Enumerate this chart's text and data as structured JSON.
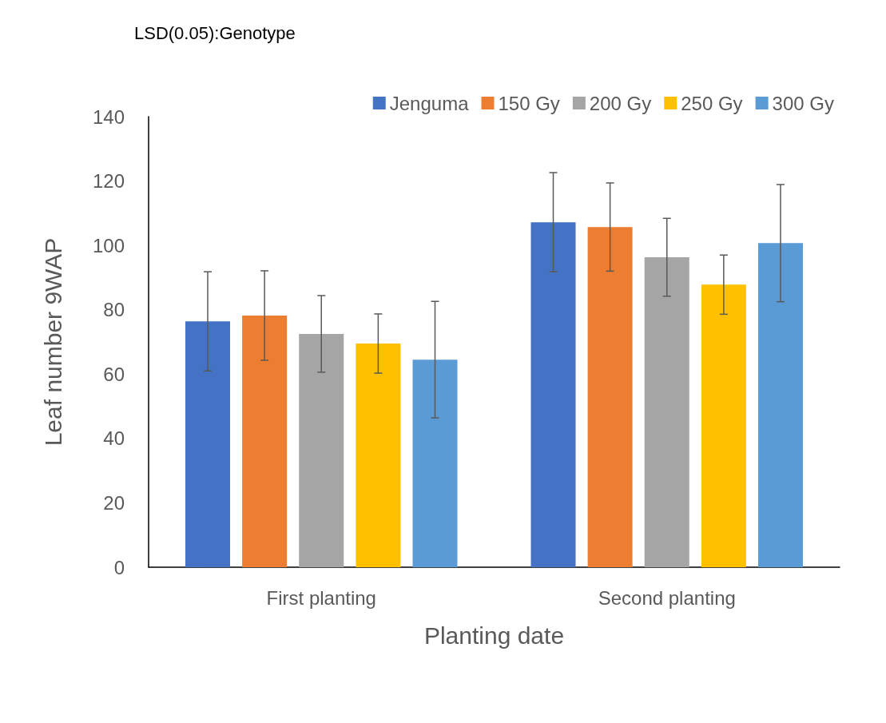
{
  "chart_data": {
    "type": "bar",
    "annotations": [
      "LSD(0.05):Genotype"
    ],
    "xlabel": "Planting date",
    "ylabel": "Leaf number 9WAP",
    "categories": [
      "First planting",
      "Second planting"
    ],
    "series": [
      {
        "name": "Jenguma",
        "color": "#4472c4",
        "values": [
          76.4,
          107.2
        ],
        "errors": [
          15.4,
          15.4
        ]
      },
      {
        "name": "150 Gy",
        "color": "#ed7d31",
        "values": [
          78.2,
          105.7
        ],
        "errors": [
          13.9,
          13.7
        ]
      },
      {
        "name": "200 Gy",
        "color": "#a5a5a5",
        "values": [
          72.5,
          96.3
        ],
        "errors": [
          11.9,
          12.1
        ]
      },
      {
        "name": "250 Gy",
        "color": "#ffc000",
        "values": [
          69.5,
          87.8
        ],
        "errors": [
          9.2,
          9.2
        ]
      },
      {
        "name": "300 Gy",
        "color": "#5b9bd5",
        "values": [
          64.5,
          100.7
        ],
        "errors": [
          18.1,
          18.2
        ]
      }
    ],
    "ylim": [
      0,
      140
    ],
    "yticks": [
      0,
      20,
      40,
      60,
      80,
      100,
      120,
      140
    ],
    "grid": false,
    "legend": "top right"
  }
}
